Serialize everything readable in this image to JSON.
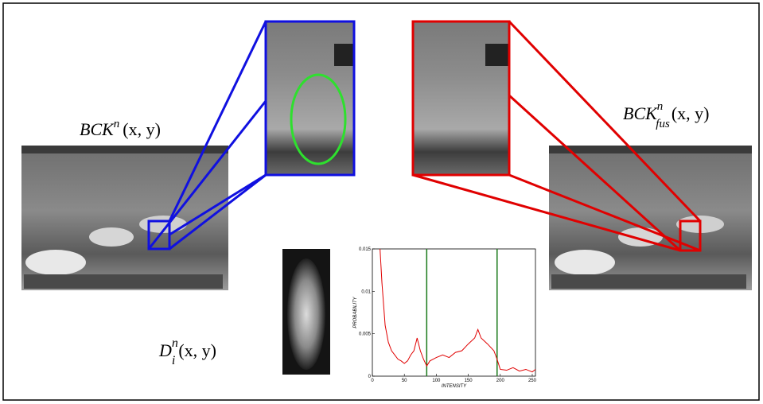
{
  "labels": {
    "bck": {
      "base": "BCK",
      "sup": "n",
      "args": "(x, y)"
    },
    "bck_fus": {
      "base": "BCK",
      "sup": "n",
      "sub": "fus",
      "args": "(x, y)"
    },
    "diff": {
      "base": "D",
      "sup": "n",
      "sub": "i",
      "args": "(x, y)"
    }
  },
  "chart_data": {
    "type": "line",
    "xlabel": "INTENSITY",
    "ylabel": "PROBABILITY",
    "xlim": [
      0,
      255
    ],
    "ylim": [
      0,
      0.015
    ],
    "xticks": [
      0,
      50,
      100,
      150,
      200,
      250
    ],
    "yticks": [
      0,
      0.005,
      0.01,
      0.015
    ],
    "thresholds": [
      85,
      195
    ],
    "threshold_color": "#1a7a1a",
    "series": [
      {
        "color": "#e00000",
        "x": [
          12,
          15,
          20,
          25,
          30,
          35,
          40,
          45,
          50,
          55,
          60,
          65,
          70,
          75,
          80,
          85,
          90,
          95,
          100,
          110,
          120,
          130,
          140,
          150,
          160,
          165,
          170,
          180,
          190,
          195,
          200,
          210,
          220,
          230,
          240,
          250,
          255
        ],
        "values": [
          0.015,
          0.011,
          0.006,
          0.004,
          0.003,
          0.0025,
          0.002,
          0.0018,
          0.0015,
          0.0018,
          0.0025,
          0.003,
          0.0045,
          0.003,
          0.002,
          0.0012,
          0.0018,
          0.002,
          0.0022,
          0.0025,
          0.0022,
          0.0028,
          0.003,
          0.0038,
          0.0045,
          0.0055,
          0.0045,
          0.0038,
          0.003,
          0.002,
          0.0008,
          0.0007,
          0.001,
          0.0006,
          0.0008,
          0.0005,
          0.0008
        ]
      }
    ]
  }
}
